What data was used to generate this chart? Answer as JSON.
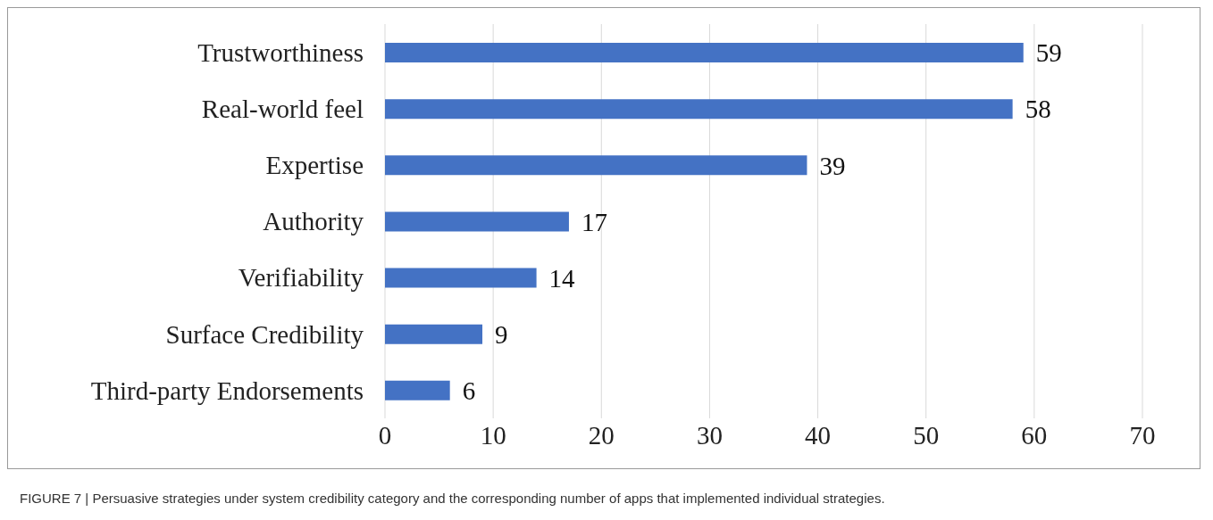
{
  "chart_data": {
    "type": "bar",
    "orientation": "horizontal",
    "categories": [
      "Trustworthiness",
      "Real-world feel",
      "Expertise",
      "Authority",
      "Verifiability",
      "Surface Credibility",
      "Third-party Endorsements"
    ],
    "values": [
      59,
      58,
      39,
      17,
      14,
      9,
      6
    ],
    "color": "#4472c4",
    "xlim": [
      0,
      70
    ],
    "xticks": [
      0,
      10,
      20,
      30,
      40,
      50,
      60,
      70
    ],
    "grid": "x",
    "data_labels": true,
    "legend": false,
    "annotations": [
      "FIGURE 7 | Persuasive strategies under system credibility category and the corresponding number of apps that implemented individual strategies."
    ]
  }
}
